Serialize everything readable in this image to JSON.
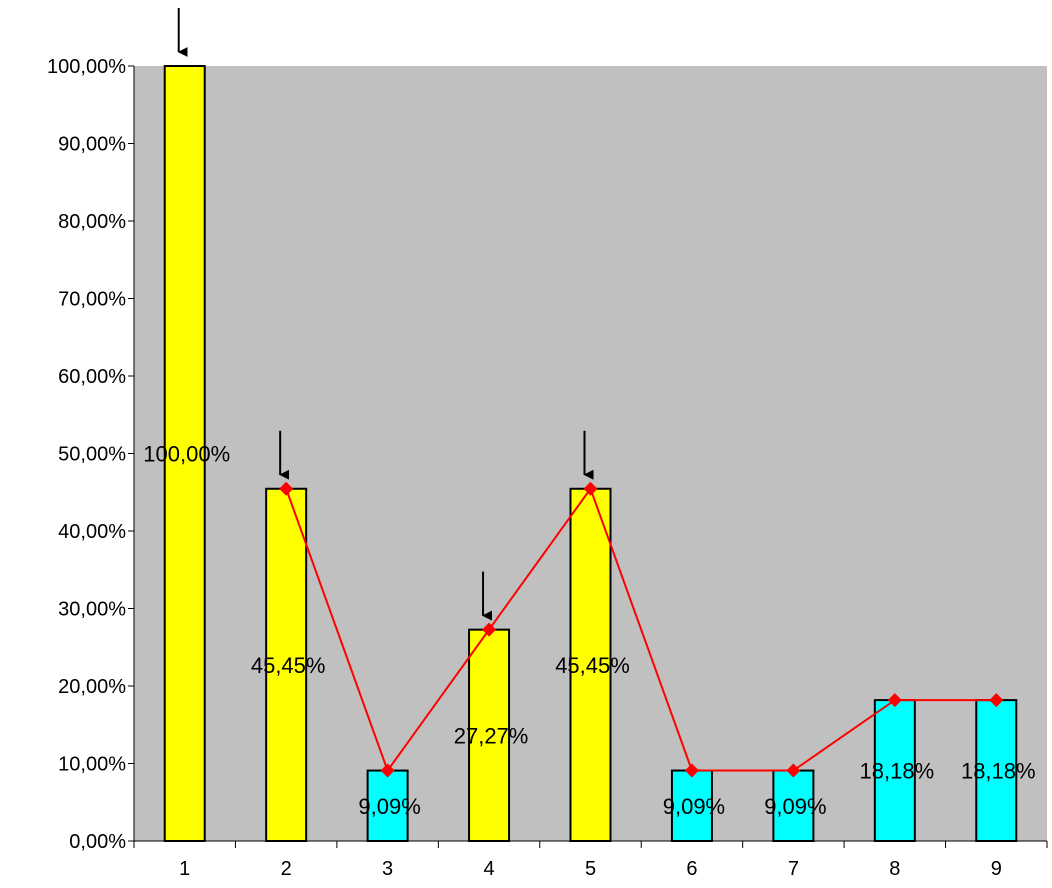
{
  "chart_data": {
    "type": "bar",
    "categories": [
      "1",
      "2",
      "3",
      "4",
      "5",
      "6",
      "7",
      "8",
      "9"
    ],
    "values": [
      100.0,
      45.45,
      9.09,
      27.27,
      45.45,
      9.09,
      9.09,
      18.18,
      18.18
    ],
    "data_labels": [
      "100,00%",
      "45,45%",
      "9,09%",
      "27,27%",
      "45,45%",
      "9,09%",
      "9,09%",
      "18,18%",
      "18,18%"
    ],
    "bar_colors": [
      "#ffff00",
      "#ffff00",
      "#00ffff",
      "#ffff00",
      "#ffff00",
      "#00ffff",
      "#00ffff",
      "#00ffff",
      "#00ffff"
    ],
    "line": {
      "x": [
        "2",
        "3",
        "4",
        "5",
        "6",
        "7",
        "8",
        "9"
      ],
      "values": [
        45.45,
        9.09,
        27.27,
        45.45,
        9.09,
        9.09,
        18.18,
        18.18
      ],
      "color": "#ff0000",
      "marker": "diamond"
    },
    "arrow_markers": [
      "1",
      "2",
      "4",
      "5"
    ],
    "y_ticks": [
      "0,00%",
      "10,00%",
      "20,00%",
      "30,00%",
      "40,00%",
      "50,00%",
      "60,00%",
      "70,00%",
      "80,00%",
      "90,00%",
      "100,00%"
    ],
    "ylim": [
      0,
      100
    ],
    "plot_background": "#c0c0c0",
    "grid": false,
    "legend": "none",
    "title": "",
    "xlabel": "",
    "ylabel": ""
  }
}
